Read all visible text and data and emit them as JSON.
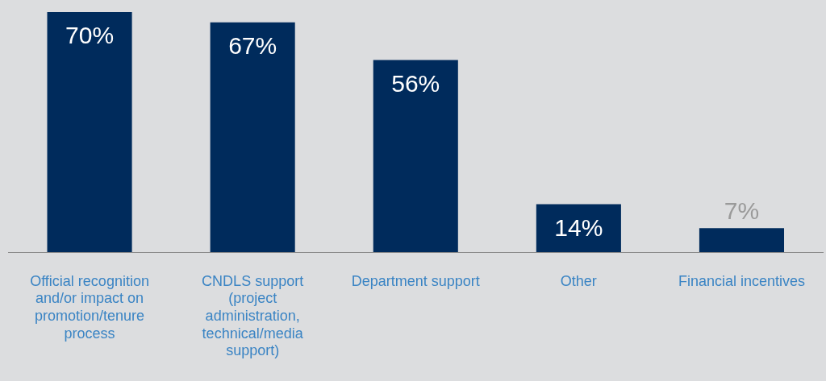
{
  "chart_data": {
    "type": "bar",
    "categories": [
      "Official recognition and/or impact on promotion/tenure process",
      "CNDLS support (project administration, technical/media support)",
      "Department support",
      "Other",
      "Financial incentives"
    ],
    "values": [
      70,
      67,
      56,
      14,
      7
    ],
    "color": "#002b5c",
    "value_labels": [
      "70%",
      "67%",
      "56%",
      "14%",
      "7%"
    ],
    "grid": false,
    "legend": false
  }
}
